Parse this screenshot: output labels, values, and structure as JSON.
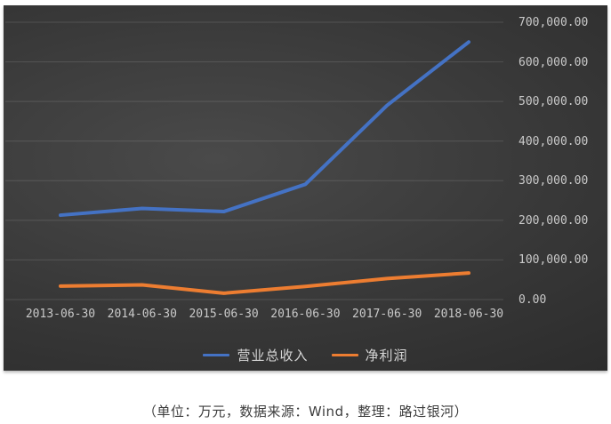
{
  "caption": {
    "text": "（单位：万元，数据来源：Wind，整理：路过银河）"
  },
  "chart_data": {
    "type": "line",
    "title": "",
    "unit": "万元",
    "categories": [
      "2013-06-30",
      "2014-06-30",
      "2015-06-30",
      "2016-06-30",
      "2017-06-30",
      "2018-06-30"
    ],
    "series": [
      {
        "name": "营业总收入",
        "color": "#4472C4",
        "values": [
          213000,
          230000,
          222000,
          291000,
          490000,
          650000
        ]
      },
      {
        "name": "净利润",
        "color": "#ED7D31",
        "values": [
          34000,
          37000,
          16000,
          33000,
          53000,
          67000
        ]
      }
    ],
    "ylim": [
      0,
      700000
    ],
    "ytick_step": 100000,
    "ytick_labels": [
      "0.00",
      "100,000.00",
      "200,000.00",
      "300,000.00",
      "400,000.00",
      "500,000.00",
      "600,000.00",
      "700,000.00"
    ],
    "xlabel": "",
    "ylabel": "",
    "grid": "horizontal",
    "gridline_color": "rgba(255,255,255,0.13)",
    "legend_position": "bottom",
    "y_axis_side": "right",
    "background": "dark-gradient",
    "source_note": "数据来源：Wind"
  }
}
